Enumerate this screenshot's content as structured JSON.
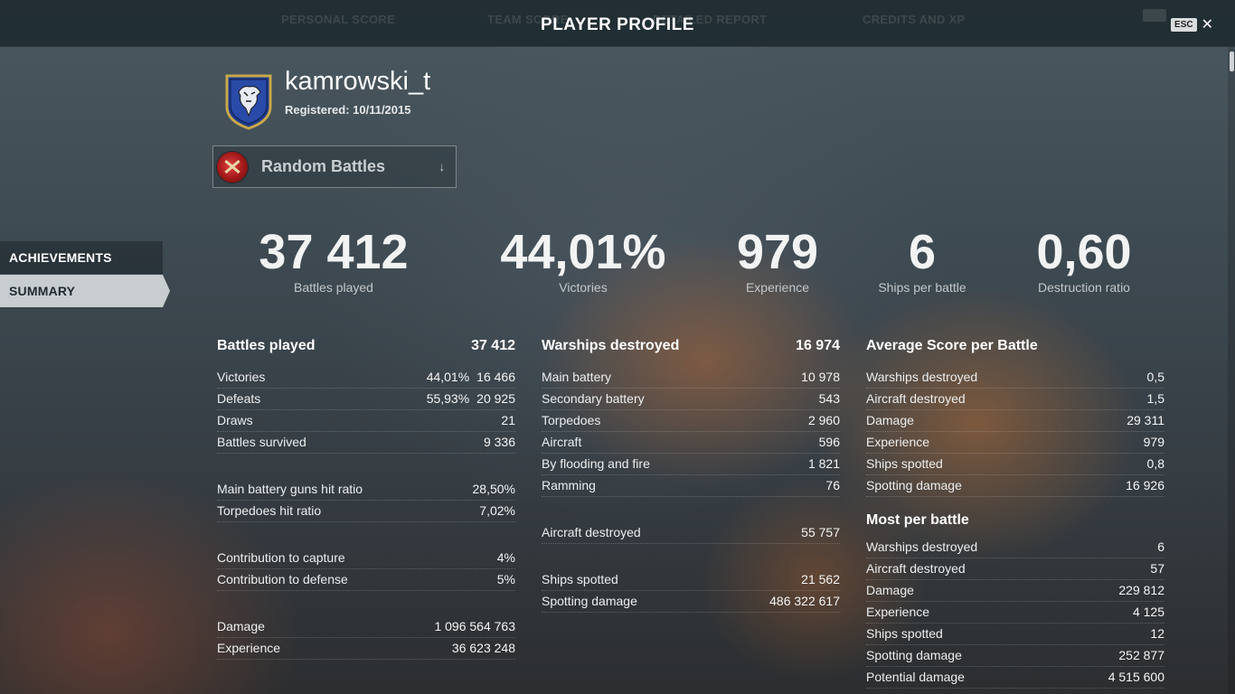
{
  "header": {
    "title": "PLAYER PROFILE",
    "esc_label": "ESC",
    "ghost_tabs": [
      "PERSONAL SCORE",
      "TEAM SCORE",
      "DETAILED REPORT",
      "CREDITS AND XP"
    ]
  },
  "profile": {
    "username": "kamrowski_t",
    "registered": "Registered: 10/11/2015",
    "emblem_icon": "clan-emblem-icon"
  },
  "mode_selector": {
    "label": "Random Battles",
    "icon": "random-battles-icon"
  },
  "side_nav": [
    {
      "label": "ACHIEVEMENTS"
    },
    {
      "label": "SUMMARY"
    }
  ],
  "big_stats": [
    {
      "value": "37 412",
      "label": "Battles played"
    },
    {
      "value": "44,01%",
      "label": "Victories"
    },
    {
      "value": "979",
      "label": "Experience"
    },
    {
      "value": "6",
      "label": "Ships per battle"
    },
    {
      "value": "0,60",
      "label": "Destruction ratio"
    }
  ],
  "battles": {
    "title": "Battles played",
    "total": "37 412",
    "rows": [
      {
        "label": "Victories",
        "pct": "44,01%",
        "value": "16 466"
      },
      {
        "label": "Defeats",
        "pct": "55,93%",
        "value": "20 925"
      },
      {
        "label": "Draws",
        "pct": "",
        "value": "21"
      },
      {
        "label": "Battles survived",
        "pct": "",
        "value": "9 336"
      }
    ],
    "rows2": [
      {
        "label": "Main battery guns hit ratio",
        "value": "28,50%"
      },
      {
        "label": "Torpedoes hit ratio",
        "value": "7,02%"
      }
    ],
    "rows3": [
      {
        "label": "Contribution to capture",
        "value": "4%"
      },
      {
        "label": "Contribution to defense",
        "value": "5%"
      }
    ],
    "rows4": [
      {
        "label": "Damage",
        "value": "1 096 564 763"
      },
      {
        "label": "Experience",
        "value": "36 623 248"
      }
    ]
  },
  "warships": {
    "title": "Warships destroyed",
    "total": "16 974",
    "rows": [
      {
        "label": "Main battery",
        "value": "10 978"
      },
      {
        "label": "Secondary battery",
        "value": "543"
      },
      {
        "label": "Torpedoes",
        "value": "2 960"
      },
      {
        "label": "Aircraft",
        "value": "596"
      },
      {
        "label": "By flooding and fire",
        "value": "1 821"
      },
      {
        "label": "Ramming",
        "value": "76"
      }
    ],
    "rows2": [
      {
        "label": "Aircraft destroyed",
        "value": "55 757"
      }
    ],
    "rows3": [
      {
        "label": "Ships spotted",
        "value": "21 562"
      },
      {
        "label": "Spotting damage",
        "value": "486 322 617"
      }
    ]
  },
  "average": {
    "title": "Average Score per Battle",
    "rows": [
      {
        "label": "Warships destroyed",
        "value": "0,5"
      },
      {
        "label": "Aircraft destroyed",
        "value": "1,5"
      },
      {
        "label": "Damage",
        "value": "29 311"
      },
      {
        "label": "Experience",
        "value": "979"
      },
      {
        "label": "Ships spotted",
        "value": "0,8"
      },
      {
        "label": "Spotting damage",
        "value": "16 926"
      }
    ]
  },
  "most": {
    "title": "Most per battle",
    "rows": [
      {
        "label": "Warships destroyed",
        "value": "6"
      },
      {
        "label": "Aircraft destroyed",
        "value": "57"
      },
      {
        "label": "Damage",
        "value": "229 812"
      },
      {
        "label": "Experience",
        "value": "4 125"
      },
      {
        "label": "Ships spotted",
        "value": "12"
      },
      {
        "label": "Spotting damage",
        "value": "252 877"
      },
      {
        "label": "Potential damage",
        "value": "4 515 600"
      }
    ]
  },
  "colors": {
    "nav_active_bg": "#d7dcde",
    "nav_active_text": "#1f2a30",
    "topbar_bg": "#1e2a30"
  }
}
